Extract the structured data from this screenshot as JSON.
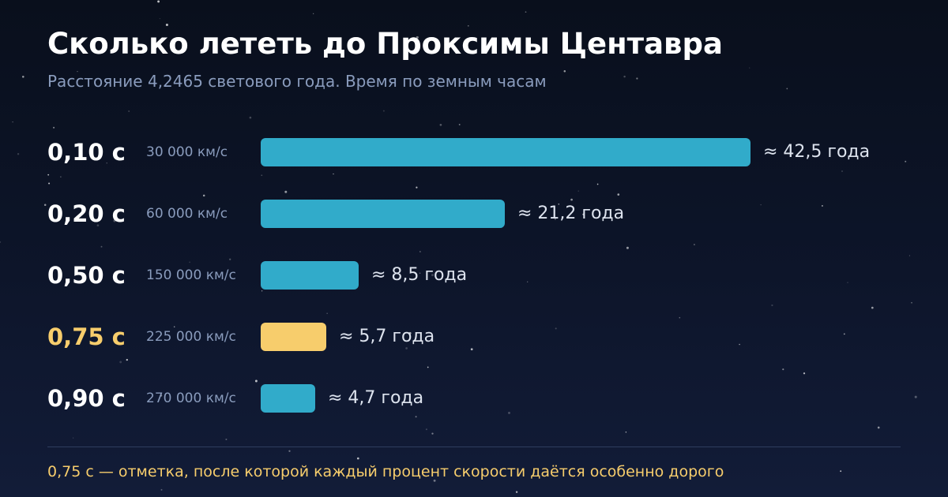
{
  "header": {
    "title": "Сколько лететь до Проксимы Центавра",
    "subtitle": "Расстояние 4,2465 светового года. Время по земным часам"
  },
  "chart_data": {
    "type": "bar",
    "orientation": "horizontal",
    "title": "Сколько лететь до Проксимы Центавра",
    "subtitle": "Расстояние 4,2465 светового года. Время по земным часам",
    "categories": [
      "0,10 c",
      "0,20 c",
      "0,50 c",
      "0,75 c",
      "0,90 c"
    ],
    "speed_labels": [
      "30 000 км/с",
      "60 000 км/с",
      "150 000 км/с",
      "225 000 км/с",
      "270 000 км/с"
    ],
    "values": [
      42.5,
      21.2,
      8.5,
      5.7,
      4.7
    ],
    "value_labels": [
      "≈ 42,5 года",
      "≈ 21,2 года",
      "≈ 8,5 года",
      "≈ 5,7 года",
      "≈ 4,7 года"
    ],
    "highlight_index": 3,
    "xlim": [
      0,
      42.5
    ],
    "grid": false,
    "legend": "none"
  },
  "footnote": "0,75 c — отметка, после которой каждый процент скорости даётся особенно дорого",
  "colors": {
    "bar": "#31abca",
    "highlight": "#f7cd6c",
    "background": "#0b1222",
    "muted_text": "#8a9cbd"
  }
}
